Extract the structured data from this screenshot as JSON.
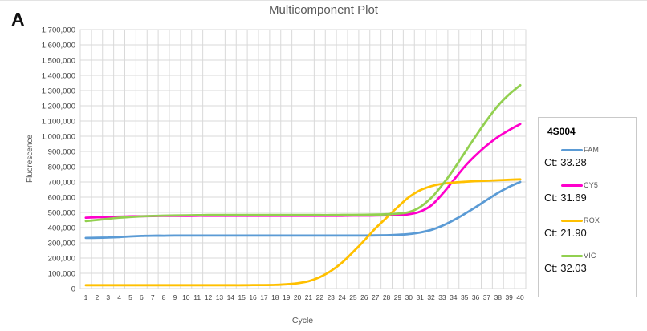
{
  "panel_label": "A",
  "chart_data": {
    "type": "line",
    "title": "Multicomponent Plot",
    "xlabel": "Cycle",
    "ylabel": "Fluorescence",
    "grid": true,
    "grid_color": "#d9d9d9",
    "tick_color": "#404040",
    "axis_title_color": "#595959",
    "ylim": [
      0,
      1700000
    ],
    "ytick_step": 100000,
    "yticks_labels": [
      "0",
      "100,000",
      "200,000",
      "300,000",
      "400,000",
      "500,000",
      "600,000",
      "700,000",
      "800,000",
      "900,000",
      "1,000,000",
      "1,100,000",
      "1,200,000",
      "1,300,000",
      "1,400,000",
      "1,500,000",
      "1,600,000",
      "1,700,000"
    ],
    "x": [
      1,
      2,
      3,
      4,
      5,
      6,
      7,
      8,
      9,
      10,
      11,
      12,
      13,
      14,
      15,
      16,
      17,
      18,
      19,
      20,
      21,
      22,
      23,
      24,
      25,
      26,
      27,
      28,
      29,
      30,
      31,
      32,
      33,
      34,
      35,
      36,
      37,
      38,
      39,
      40
    ],
    "series": [
      {
        "name": "FAM",
        "color": "#5B9BD5",
        "ct": "33.28",
        "values": [
          332000,
          333000,
          335000,
          338000,
          342000,
          345000,
          347000,
          347000,
          348000,
          348000,
          348000,
          348000,
          348000,
          348000,
          348000,
          348000,
          348000,
          348000,
          348000,
          348000,
          348000,
          348000,
          348000,
          348000,
          348000,
          348000,
          349000,
          350000,
          353000,
          358000,
          368000,
          385000,
          412000,
          448000,
          490000,
          535000,
          582000,
          628000,
          668000,
          700000
        ]
      },
      {
        "name": "CY5",
        "color": "#FF00CC",
        "ct": "31.69",
        "values": [
          465000,
          468000,
          470000,
          472000,
          474000,
          475000,
          476000,
          477000,
          477000,
          477000,
          478000,
          478000,
          478000,
          478000,
          478000,
          478000,
          478000,
          478000,
          478000,
          478000,
          478000,
          478000,
          478000,
          478000,
          479000,
          479000,
          480000,
          481000,
          483000,
          488000,
          505000,
          545000,
          620000,
          710000,
          800000,
          875000,
          940000,
          995000,
          1040000,
          1080000
        ]
      },
      {
        "name": "ROX",
        "color": "#FFC000",
        "ct": "21.90",
        "values": [
          22000,
          22000,
          22000,
          22000,
          22000,
          22000,
          22000,
          22000,
          22000,
          22000,
          22000,
          22000,
          22000,
          22000,
          22000,
          23000,
          23000,
          24000,
          28000,
          35000,
          48000,
          75000,
          115000,
          170000,
          240000,
          315000,
          395000,
          465000,
          535000,
          600000,
          645000,
          672000,
          688000,
          696000,
          701000,
          705000,
          708000,
          711000,
          714000,
          717000
        ]
      },
      {
        "name": "VIC",
        "color": "#92D050",
        "ct": "32.03",
        "values": [
          443000,
          450000,
          458000,
          465000,
          470000,
          474000,
          477000,
          479000,
          480000,
          481000,
          482000,
          483000,
          483000,
          483000,
          483000,
          483000,
          483000,
          483000,
          483000,
          483000,
          483000,
          483000,
          483000,
          484000,
          484000,
          485000,
          486000,
          488000,
          492000,
          502000,
          535000,
          595000,
          680000,
          780000,
          890000,
          1000000,
          1105000,
          1200000,
          1275000,
          1335000
        ]
      }
    ],
    "legend_position": "right"
  },
  "legend": {
    "title": "4S004",
    "entries": [
      {
        "label": "FAM",
        "ct_label": "Ct: 33.28",
        "color": "#5B9BD5"
      },
      {
        "label": "CY5",
        "ct_label": "Ct: 31.69",
        "color": "#FF00CC"
      },
      {
        "label": "ROX",
        "ct_label": "Ct: 21.90",
        "color": "#FFC000"
      },
      {
        "label": "VIC",
        "ct_label": "Ct: 32.03",
        "color": "#92D050"
      }
    ]
  }
}
